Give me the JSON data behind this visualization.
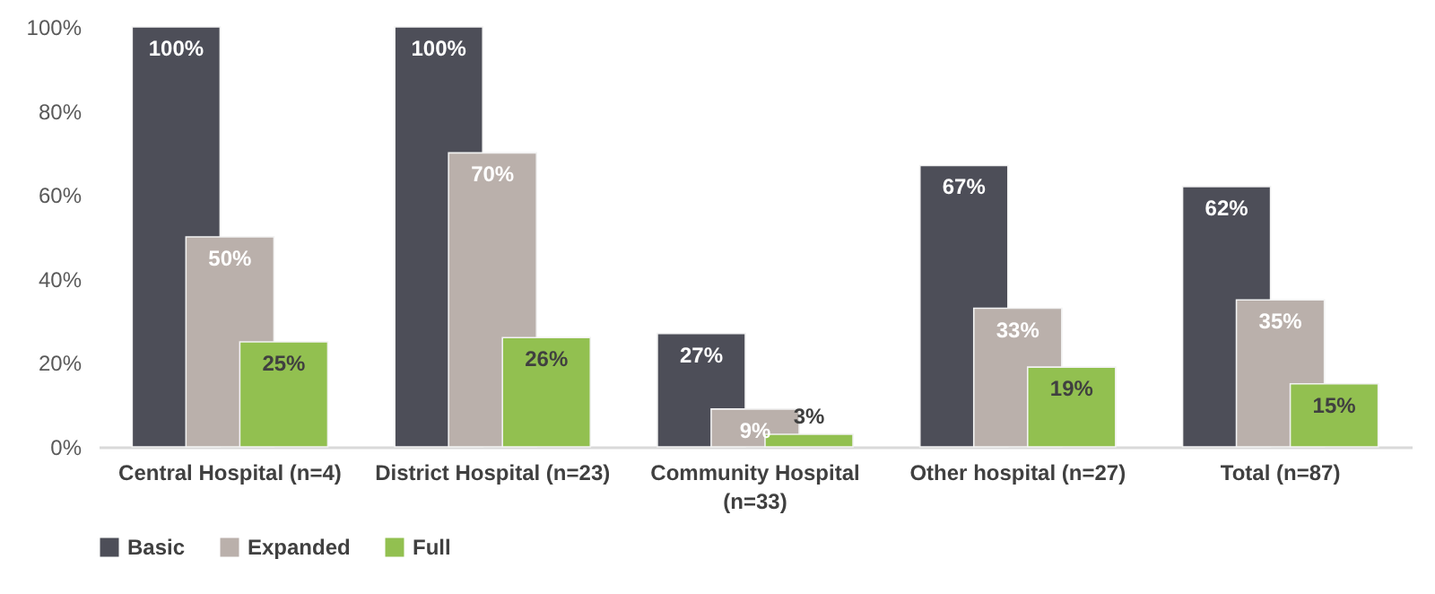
{
  "chart_data": {
    "type": "bar",
    "categories": [
      "Central Hospital (n=4)",
      "District Hospital (n=23)",
      "Community Hospital (n=33)",
      "Other hospital (n=27)",
      "Total (n=87)"
    ],
    "series": [
      {
        "name": "Basic",
        "color": "#4d4e58",
        "values": [
          100,
          100,
          27,
          67,
          62
        ],
        "value_labels": [
          "100%",
          "100%",
          "27%",
          "67%",
          "62%"
        ]
      },
      {
        "name": "Expanded",
        "color": "#bab0ab",
        "values": [
          50,
          70,
          9,
          33,
          35
        ],
        "value_labels": [
          "50%",
          "70%",
          "9%",
          "33%",
          "35%"
        ]
      },
      {
        "name": "Full",
        "color": "#92c050",
        "values": [
          25,
          26,
          3,
          19,
          15
        ],
        "value_labels": [
          "25%",
          "26%",
          "3%",
          "19%",
          "15%"
        ]
      }
    ],
    "ylim": [
      0,
      100
    ],
    "yticks": [
      {
        "value": 0,
        "label": "0%"
      },
      {
        "value": 20,
        "label": "20%"
      },
      {
        "value": 40,
        "label": "40%"
      },
      {
        "value": 60,
        "label": "60%"
      },
      {
        "value": 80,
        "label": "80%"
      },
      {
        "value": 100,
        "label": "100%"
      }
    ],
    "grid": false,
    "legend": "bottom"
  }
}
